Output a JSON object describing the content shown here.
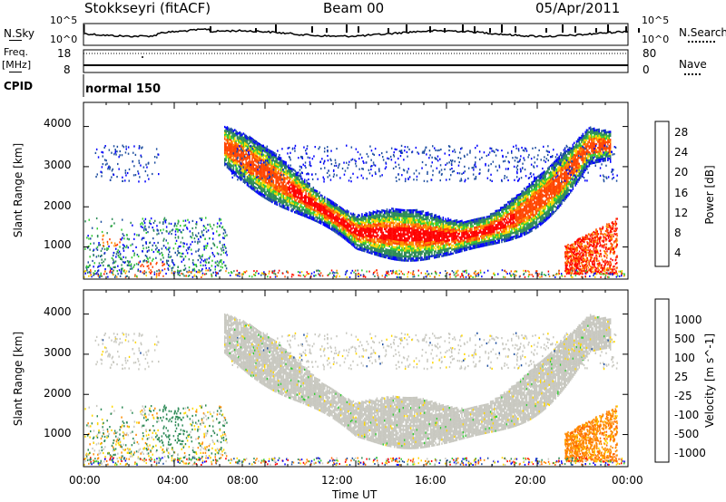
{
  "header": {
    "station": "Stokkseyri (fitACF)",
    "beam": "Beam 00",
    "date": "05/Apr/2011"
  },
  "top_panels": {
    "nsky_label": "N.Sky",
    "nsearch_label": "N.Search",
    "nsky_ticks": [
      "10^5",
      "10^0"
    ],
    "nsky_right_ticks": [
      "10^5",
      "10^0"
    ],
    "freq_label": "Freq.",
    "freq_unit": "[MHz]",
    "freq_ticks": [
      "18",
      "8"
    ],
    "nave_label": "Nave",
    "nave_ticks": [
      "80",
      "0"
    ],
    "cpid_label": "CPID",
    "cpid_value": "normal 150"
  },
  "chart_data": [
    {
      "type": "heatmap",
      "name": "power-panel",
      "ylabel": "Slant Range [km]",
      "yticks": [
        1000,
        2000,
        3000,
        4000
      ],
      "ylim": [
        200,
        4600
      ],
      "xlim": [
        0,
        24
      ],
      "colorbar": {
        "label": "Power [dB]",
        "ticks": [
          "28",
          "24",
          "20",
          "16",
          "12",
          "8",
          "4"
        ],
        "colors": [
          "#0000ff",
          "#1f4fa0",
          "#2e8b57",
          "#33cc33",
          "#ffd700",
          "#ff8c00",
          "#ff4500",
          "#ff0000"
        ]
      }
    },
    {
      "type": "heatmap",
      "name": "velocity-panel",
      "ylabel": "Slant Range [km]",
      "yticks": [
        1000,
        2000,
        3000,
        4000
      ],
      "ylim": [
        200,
        4600
      ],
      "xlim": [
        0,
        24
      ],
      "xlabel": "Time UT",
      "xticks": [
        "00:00",
        "04:00",
        "08:00",
        "12:00",
        "16:00",
        "20:00",
        "00:00"
      ],
      "colorbar": {
        "label": "Velocity [m s^-1]",
        "ticks": [
          "1000",
          "500",
          "100",
          "25",
          "-25",
          "-100",
          "-500",
          "-1000"
        ],
        "colors": [
          "#0000ff",
          "#1f4fa0",
          "#2e8b57",
          "#33cc33",
          "#c8c8c0",
          "#ffd700",
          "#ff8c00",
          "#ff6000",
          "#ff0000"
        ]
      }
    }
  ]
}
